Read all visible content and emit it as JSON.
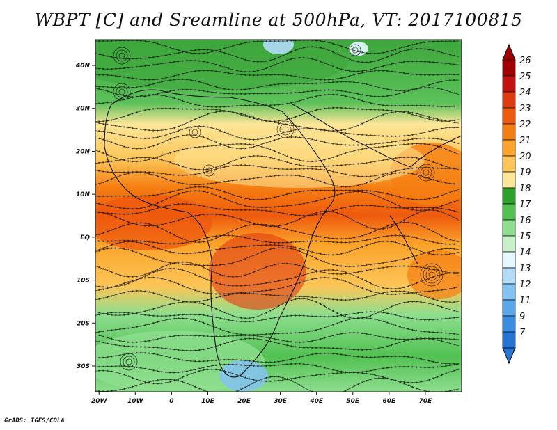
{
  "chart_data": {
    "type": "heatmap",
    "title": "WBPT [C] and Sreamline at 500hPa, VT: 2017100815",
    "variable": "WBPT [C]",
    "level": "500hPa",
    "valid_time": "2017100815",
    "overlay": "streamlines",
    "x_ticks": [
      {
        "value": -20,
        "label": "20W"
      },
      {
        "value": -10,
        "label": "10W"
      },
      {
        "value": 0,
        "label": "0"
      },
      {
        "value": 10,
        "label": "10E"
      },
      {
        "value": 20,
        "label": "20E"
      },
      {
        "value": 30,
        "label": "30E"
      },
      {
        "value": 40,
        "label": "40E"
      },
      {
        "value": 50,
        "label": "50E"
      },
      {
        "value": 60,
        "label": "60E"
      },
      {
        "value": 70,
        "label": "70E"
      }
    ],
    "y_ticks": [
      {
        "value": 40,
        "label": "40N"
      },
      {
        "value": 30,
        "label": "30N"
      },
      {
        "value": 20,
        "label": "20N"
      },
      {
        "value": 10,
        "label": "10N"
      },
      {
        "value": 0,
        "label": "EQ"
      },
      {
        "value": -10,
        "label": "10S"
      },
      {
        "value": -20,
        "label": "20S"
      },
      {
        "value": -30,
        "label": "30S"
      }
    ],
    "xlim": [
      -21,
      80
    ],
    "ylim": [
      -36,
      46
    ],
    "colorbar": {
      "labels": [
        "26",
        "25",
        "24",
        "23",
        "22",
        "21",
        "20",
        "19",
        "18",
        "17",
        "16",
        "15",
        "14",
        "13",
        "12",
        "11",
        "9",
        "7"
      ],
      "colors": [
        "#a00000",
        "#c41010",
        "#e03a10",
        "#ee5a0e",
        "#f57e12",
        "#fba32a",
        "#fcc557",
        "#fde699",
        "#2ea02e",
        "#52c152",
        "#8ede8e",
        "#c9f1c9",
        "#e6f8ff",
        "#b3dcf9",
        "#84c2f2",
        "#5aa7ea",
        "#3b8de0",
        "#2574d6"
      ]
    }
  },
  "credit": "GrADS: IGES/COLA"
}
